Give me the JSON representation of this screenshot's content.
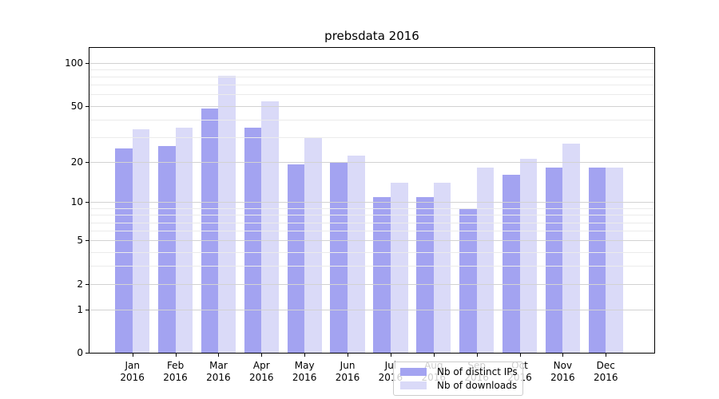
{
  "title": "prebsdata 2016",
  "chart_data": {
    "type": "bar",
    "title": "prebsdata 2016",
    "categories": [
      "Jan",
      "Feb",
      "Mar",
      "Apr",
      "May",
      "Jun",
      "Jul",
      "Aug",
      "Sep",
      "Oct",
      "Nov",
      "Dec"
    ],
    "x_tick_year": "2016",
    "series": [
      {
        "name": "Nb of distinct IPs",
        "color": "#a3a3f1",
        "values": [
          25,
          26,
          48,
          35,
          19,
          20,
          11,
          11,
          9,
          16,
          18,
          18
        ]
      },
      {
        "name": "Nb of downloads",
        "color": "#dadaf8",
        "values": [
          34,
          35,
          81,
          54,
          30,
          22,
          14,
          14,
          18,
          21,
          27,
          18
        ]
      }
    ],
    "xlabel": "",
    "ylabel": "",
    "y_scale": "log1p",
    "ylim": [
      0,
      130
    ],
    "y_ticks": [
      100,
      50,
      20,
      10,
      5,
      2,
      1,
      0
    ],
    "y_minor_ticks": [
      3,
      4,
      6,
      7,
      8,
      9,
      30,
      40,
      60,
      70,
      80,
      90
    ],
    "grid": "horizontal major+minor, drawn over bars",
    "legend_position": "lower center inside axes"
  },
  "colors": {
    "series1": "#a3a3f1",
    "series2": "#dadaf8",
    "grid_major": "#d2d2d2",
    "grid_minor": "#ebebeb",
    "axis": "#000000",
    "legend_border": "#cccccc"
  }
}
